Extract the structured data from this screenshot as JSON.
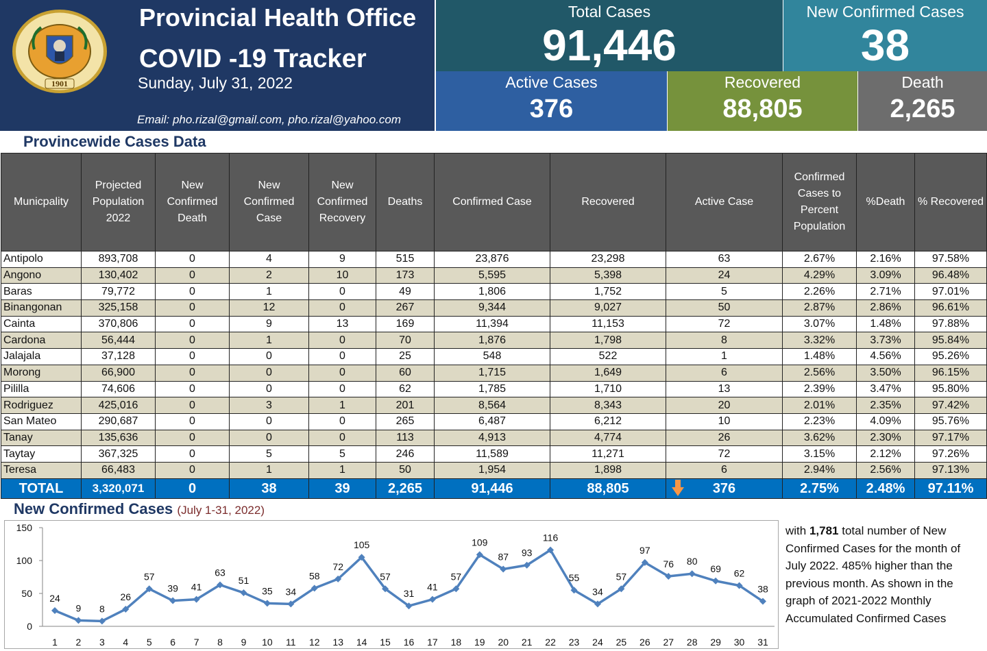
{
  "header": {
    "title": "Provincial Health Office",
    "subtitle": "COVID -19 Tracker",
    "date": "Sunday, July 31, 2022",
    "email": "Email: pho.rizal@gmail.com, pho.rizal@yahoo.com",
    "seal": {
      "top_text": "LALAWIGAN NG RIZAL",
      "year": "1901"
    }
  },
  "kpis": {
    "total": {
      "label": "Total Cases",
      "value": "91,446"
    },
    "new_confirmed": {
      "label": "New Confirmed Cases",
      "value": "38"
    },
    "active": {
      "label": "Active Cases",
      "value": "376"
    },
    "recovered": {
      "label": "Recovered",
      "value": "88,805"
    },
    "death": {
      "label": "Death",
      "value": "2,265"
    }
  },
  "table": {
    "title": "Provincewide Cases Data",
    "columns": [
      "Municpality",
      "Projected Population 2022",
      "New Confirmed Death",
      "New Confirmed Case",
      "New Confirmed Recovery",
      "Deaths",
      "Confirmed Case",
      "Recovered",
      "Active Case",
      "Confirmed Cases to Percent Population",
      "%Death",
      "% Recovered"
    ],
    "rows": [
      [
        "Antipolo",
        "893,708",
        "0",
        "4",
        "9",
        "515",
        "23,876",
        "23,298",
        "63",
        "2.67%",
        "2.16%",
        "97.58%"
      ],
      [
        "Angono",
        "130,402",
        "0",
        "2",
        "10",
        "173",
        "5,595",
        "5,398",
        "24",
        "4.29%",
        "3.09%",
        "96.48%"
      ],
      [
        "Baras",
        "79,772",
        "0",
        "1",
        "0",
        "49",
        "1,806",
        "1,752",
        "5",
        "2.26%",
        "2.71%",
        "97.01%"
      ],
      [
        "Binangonan",
        "325,158",
        "0",
        "12",
        "0",
        "267",
        "9,344",
        "9,027",
        "50",
        "2.87%",
        "2.86%",
        "96.61%"
      ],
      [
        "Cainta",
        "370,806",
        "0",
        "9",
        "13",
        "169",
        "11,394",
        "11,153",
        "72",
        "3.07%",
        "1.48%",
        "97.88%"
      ],
      [
        "Cardona",
        "56,444",
        "0",
        "1",
        "0",
        "70",
        "1,876",
        "1,798",
        "8",
        "3.32%",
        "3.73%",
        "95.84%"
      ],
      [
        "Jalajala",
        "37,128",
        "0",
        "0",
        "0",
        "25",
        "548",
        "522",
        "1",
        "1.48%",
        "4.56%",
        "95.26%"
      ],
      [
        "Morong",
        "66,900",
        "0",
        "0",
        "0",
        "60",
        "1,715",
        "1,649",
        "6",
        "2.56%",
        "3.50%",
        "96.15%"
      ],
      [
        "Pililla",
        "74,606",
        "0",
        "0",
        "0",
        "62",
        "1,785",
        "1,710",
        "13",
        "2.39%",
        "3.47%",
        "95.80%"
      ],
      [
        "Rodriguez",
        "425,016",
        "0",
        "3",
        "1",
        "201",
        "8,564",
        "8,343",
        "20",
        "2.01%",
        "2.35%",
        "97.42%"
      ],
      [
        "San Mateo",
        "290,687",
        "0",
        "0",
        "0",
        "265",
        "6,487",
        "6,212",
        "10",
        "2.23%",
        "4.09%",
        "95.76%"
      ],
      [
        "Tanay",
        "135,636",
        "0",
        "0",
        "0",
        "113",
        "4,913",
        "4,774",
        "26",
        "3.62%",
        "2.30%",
        "97.17%"
      ],
      [
        "Taytay",
        "367,325",
        "0",
        "5",
        "5",
        "246",
        "11,589",
        "11,271",
        "72",
        "3.15%",
        "2.12%",
        "97.26%"
      ],
      [
        "Teresa",
        "66,483",
        "0",
        "1",
        "1",
        "50",
        "1,954",
        "1,898",
        "6",
        "2.94%",
        "2.56%",
        "97.13%"
      ]
    ],
    "total": [
      "TOTAL",
      "3,320,071",
      "0",
      "38",
      "39",
      "2,265",
      "91,446",
      "88,805",
      "376",
      "2.75%",
      "2.48%",
      "97.11%"
    ],
    "active_trend_icon": "down-arrow-icon",
    "colors": {
      "header": "#595959",
      "stripe": "#ddd9c4",
      "total": "#0070c0"
    }
  },
  "chart_title": "New Confirmed Cases",
  "chart_period": "(July 1-31, 2022)",
  "chart_data": {
    "type": "line",
    "title": "New Confirmed Cases",
    "subtitle": "(July 1-31, 2022)",
    "xlabel": "",
    "ylabel": "",
    "x": [
      1,
      2,
      3,
      4,
      5,
      6,
      7,
      8,
      9,
      10,
      11,
      12,
      13,
      14,
      15,
      16,
      17,
      18,
      19,
      20,
      21,
      22,
      23,
      24,
      25,
      26,
      27,
      28,
      29,
      30,
      31
    ],
    "series": [
      {
        "values": [
          24,
          9,
          8,
          26,
          57,
          39,
          41,
          63,
          51,
          35,
          34,
          58,
          72,
          105,
          57,
          31,
          41,
          57,
          109,
          87,
          93,
          116,
          55,
          34,
          57,
          97,
          76,
          80,
          69,
          62,
          38
        ]
      }
    ],
    "yticks": [
      0,
      50,
      100,
      150
    ],
    "ylim": [
      0,
      150
    ],
    "grid": false,
    "data_labels": true,
    "line_color": "#4f81bd"
  },
  "note": {
    "before": "with ",
    "highlight": "1,781",
    "after": " total number of New Confirmed Cases for the month of July 2022. 485% higher than the previous month. As shown in the graph of 2021-2022 Monthly Accumulated Confirmed Cases"
  }
}
